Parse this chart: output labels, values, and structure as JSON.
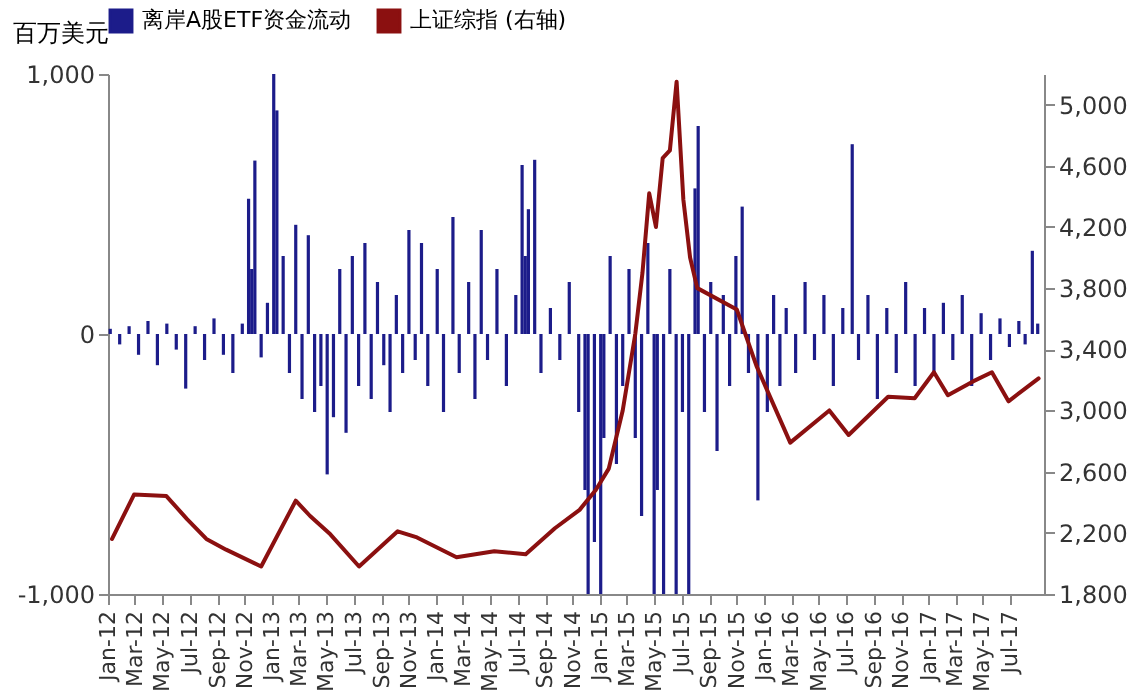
{
  "chart_data": {
    "type": "bar",
    "ylabel": "百万美元",
    "legend": "top",
    "xlim": [
      "2012-01-01",
      "2017-09-15"
    ],
    "xticks": [
      {
        "value": "2012-01-01",
        "label": "Jan-12"
      },
      {
        "value": "2012-03-01",
        "label": "Mar-12"
      },
      {
        "value": "2012-05-01",
        "label": "May-12"
      },
      {
        "value": "2012-07-01",
        "label": "Jul-12"
      },
      {
        "value": "2012-09-01",
        "label": "Sep-12"
      },
      {
        "value": "2012-11-01",
        "label": "Nov-12"
      },
      {
        "value": "2013-01-01",
        "label": "Jan-13"
      },
      {
        "value": "2013-03-01",
        "label": "Mar-13"
      },
      {
        "value": "2013-05-01",
        "label": "May-13"
      },
      {
        "value": "2013-07-01",
        "label": "Jul-13"
      },
      {
        "value": "2013-09-01",
        "label": "Sep-13"
      },
      {
        "value": "2013-11-01",
        "label": "Nov-13"
      },
      {
        "value": "2014-01-01",
        "label": "Jan-14"
      },
      {
        "value": "2014-03-01",
        "label": "Mar-14"
      },
      {
        "value": "2014-05-01",
        "label": "May-14"
      },
      {
        "value": "2014-07-01",
        "label": "Jul-14"
      },
      {
        "value": "2014-09-01",
        "label": "Sep-14"
      },
      {
        "value": "2014-11-01",
        "label": "Nov-14"
      },
      {
        "value": "2015-01-01",
        "label": "Jan-15"
      },
      {
        "value": "2015-03-01",
        "label": "Mar-15"
      },
      {
        "value": "2015-05-01",
        "label": "May-15"
      },
      {
        "value": "2015-07-01",
        "label": "Jul-15"
      },
      {
        "value": "2015-09-01",
        "label": "Sep-15"
      },
      {
        "value": "2015-11-01",
        "label": "Nov-15"
      },
      {
        "value": "2016-01-01",
        "label": "Jan-16"
      },
      {
        "value": "2016-03-01",
        "label": "Mar-16"
      },
      {
        "value": "2016-05-01",
        "label": "May-16"
      },
      {
        "value": "2016-07-01",
        "label": "Jul-16"
      },
      {
        "value": "2016-09-01",
        "label": "Sep-16"
      },
      {
        "value": "2016-11-01",
        "label": "Nov-16"
      },
      {
        "value": "2017-01-01",
        "label": "Jan-17"
      },
      {
        "value": "2017-03-01",
        "label": "Mar-17"
      },
      {
        "value": "2017-05-01",
        "label": "May-17"
      },
      {
        "value": "2017-07-01",
        "label": "Jul-17"
      }
    ],
    "ylim": [
      -1000,
      1000
    ],
    "yticks": [
      {
        "value": -1000,
        "label": "-1,000"
      },
      {
        "value": 0,
        "label": "0"
      },
      {
        "value": 1000,
        "label": "1,000"
      }
    ],
    "y2lim": [
      1800,
      5200
    ],
    "y2ticks": [
      {
        "value": 1800,
        "label": "1,800"
      },
      {
        "value": 2200,
        "label": "2,200"
      },
      {
        "value": 2600,
        "label": "2,600"
      },
      {
        "value": 3000,
        "label": "3,000"
      },
      {
        "value": 3400,
        "label": "3,400"
      },
      {
        "value": 3800,
        "label": "3,800"
      },
      {
        "value": 4200,
        "label": "4,200"
      },
      {
        "value": 4600,
        "label": "4,600"
      },
      {
        "value": 5000,
        "label": "5,000"
      }
    ],
    "series": [
      {
        "name": "离岸A股ETF资金流动",
        "color": "#1c1c8a",
        "x": [
          "2012-01-06",
          "2012-01-27",
          "2012-02-17",
          "2012-03-09",
          "2012-03-30",
          "2012-04-20",
          "2012-05-11",
          "2012-06-01",
          "2012-06-22",
          "2012-07-13",
          "2012-08-03",
          "2012-08-24",
          "2012-09-14",
          "2012-10-05",
          "2012-10-26",
          "2012-11-09",
          "2012-11-16",
          "2012-11-23",
          "2012-12-07",
          "2012-12-21",
          "2013-01-04",
          "2013-01-11",
          "2013-01-25",
          "2013-02-08",
          "2013-02-22",
          "2013-03-08",
          "2013-03-22",
          "2013-04-05",
          "2013-04-19",
          "2013-05-03",
          "2013-05-17",
          "2013-05-31",
          "2013-06-14",
          "2013-06-28",
          "2013-07-12",
          "2013-07-26",
          "2013-08-09",
          "2013-08-23",
          "2013-09-06",
          "2013-09-20",
          "2013-10-04",
          "2013-10-18",
          "2013-11-01",
          "2013-11-15",
          "2013-11-29",
          "2013-12-13",
          "2014-01-03",
          "2014-01-17",
          "2014-02-07",
          "2014-02-21",
          "2014-03-14",
          "2014-03-28",
          "2014-04-11",
          "2014-04-25",
          "2014-05-16",
          "2014-06-06",
          "2014-06-27",
          "2014-07-11",
          "2014-07-18",
          "2014-07-25",
          "2014-08-08",
          "2014-08-22",
          "2014-09-12",
          "2014-10-03",
          "2014-10-24",
          "2014-11-14",
          "2014-11-28",
          "2014-12-05",
          "2014-12-19",
          "2015-01-02",
          "2015-01-09",
          "2015-01-23",
          "2015-02-06",
          "2015-02-20",
          "2015-03-06",
          "2015-03-20",
          "2015-04-03",
          "2015-04-17",
          "2015-05-01",
          "2015-05-08",
          "2015-05-22",
          "2015-06-05",
          "2015-06-19",
          "2015-07-03",
          "2015-07-17",
          "2015-07-31",
          "2015-08-07",
          "2015-08-21",
          "2015-09-04",
          "2015-09-18",
          "2015-10-02",
          "2015-10-16",
          "2015-10-30",
          "2015-11-13",
          "2015-11-27",
          "2015-12-18",
          "2016-01-08",
          "2016-01-22",
          "2016-02-05",
          "2016-02-19",
          "2016-03-11",
          "2016-04-01",
          "2016-04-22",
          "2016-05-13",
          "2016-06-03",
          "2016-06-24",
          "2016-07-15",
          "2016-07-29",
          "2016-08-19",
          "2016-09-09",
          "2016-09-30",
          "2016-10-21",
          "2016-11-11",
          "2016-12-02",
          "2016-12-23",
          "2017-01-13",
          "2017-02-03",
          "2017-02-24",
          "2017-03-17",
          "2017-04-07",
          "2017-04-28",
          "2017-05-19",
          "2017-06-09",
          "2017-06-30",
          "2017-07-21",
          "2017-08-04",
          "2017-08-20",
          "2017-09-01"
        ],
        "values": [
          20,
          -40,
          30,
          -80,
          50,
          -120,
          40,
          -60,
          -210,
          30,
          -100,
          60,
          -80,
          -150,
          40,
          520,
          250,
          667,
          -90,
          120,
          1000,
          860,
          300,
          -150,
          420,
          -250,
          380,
          -300,
          -200,
          -540,
          -320,
          250,
          -380,
          300,
          -200,
          350,
          -250,
          200,
          -120,
          -300,
          150,
          -150,
          400,
          -100,
          350,
          -200,
          250,
          -300,
          450,
          -150,
          200,
          -250,
          400,
          -100,
          250,
          -200,
          150,
          650,
          300,
          480,
          670,
          -150,
          100,
          -100,
          200,
          -300,
          -600,
          -1000,
          -800,
          -1000,
          -400,
          300,
          -500,
          -200,
          250,
          -400,
          -700,
          350,
          -1000,
          -600,
          -1000,
          250,
          -1000,
          -300,
          -1000,
          560,
          800,
          -300,
          200,
          -450,
          150,
          -200,
          300,
          490,
          -150,
          -640,
          -300,
          150,
          -200,
          100,
          -150,
          200,
          -100,
          150,
          -200,
          100,
          730,
          -100,
          150,
          -250,
          100,
          -150,
          200,
          -200,
          100,
          -150,
          120,
          -100,
          150,
          -200,
          80,
          -100,
          60,
          -50,
          50,
          -40,
          320,
          40
        ]
      },
      {
        "name": "上证综指 (右轴)",
        "type": "line",
        "axis": "y2",
        "color": "#8b1010",
        "x": [
          "2012-01-10",
          "2012-02-28",
          "2012-05-10",
          "2012-06-25",
          "2012-08-07",
          "2012-09-20",
          "2012-12-07",
          "2013-02-22",
          "2013-03-26",
          "2013-05-10",
          "2013-07-13",
          "2013-10-07",
          "2013-11-19",
          "2014-02-15",
          "2014-05-10",
          "2014-07-19",
          "2014-09-22",
          "2014-11-16",
          "2014-12-22",
          "2015-01-20",
          "2015-02-20",
          "2015-03-20",
          "2015-04-05",
          "2015-04-20",
          "2015-05-05",
          "2015-05-20",
          "2015-06-05",
          "2015-06-20",
          "2015-07-05",
          "2015-07-20",
          "2015-08-05",
          "2015-11-01",
          "2015-12-15",
          "2016-02-28",
          "2016-05-25",
          "2016-07-07",
          "2016-10-03",
          "2016-12-01",
          "2017-01-13",
          "2017-02-13",
          "2017-04-10",
          "2017-05-22",
          "2017-06-28",
          "2017-09-03"
        ],
        "values": [
          2160,
          2450,
          2440,
          2290,
          2160,
          2090,
          1980,
          2410,
          2310,
          2190,
          1980,
          2210,
          2170,
          2040,
          2080,
          2060,
          2230,
          2350,
          2480,
          2620,
          3000,
          3500,
          3900,
          4420,
          4200,
          4650,
          4700,
          5150,
          4380,
          4000,
          3800,
          3660,
          3290,
          2790,
          3000,
          2840,
          3090,
          3080,
          3250,
          3100,
          3190,
          3250,
          3060,
          3210
        ]
      }
    ]
  }
}
